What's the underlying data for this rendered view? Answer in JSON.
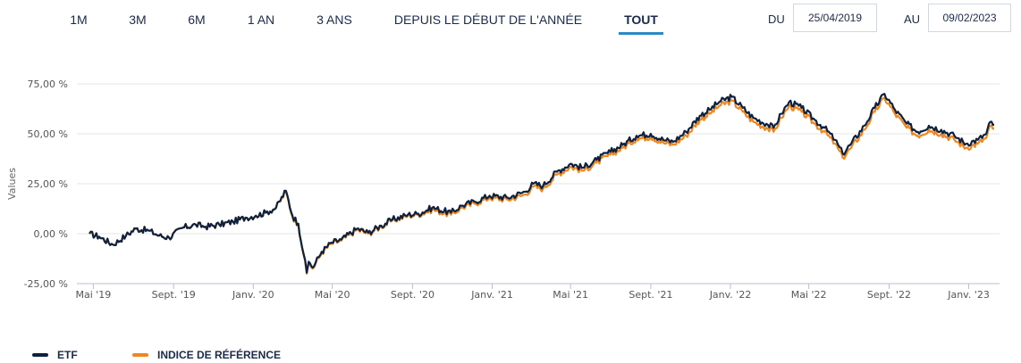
{
  "range_tabs": [
    {
      "label": "1M"
    },
    {
      "label": "3M"
    },
    {
      "label": "6M"
    },
    {
      "label": "1 AN"
    },
    {
      "label": "3 ANS"
    },
    {
      "label": "DEPUIS LE DÉBUT DE L'ANNÉE"
    },
    {
      "label": "TOUT",
      "active": true
    }
  ],
  "date_range": {
    "from_label": "DU",
    "from_value": "25/04/2019",
    "to_label": "AU",
    "to_value": "09/02/2023"
  },
  "colors": {
    "etf": "#0e2240",
    "benchmark": "#f0861e",
    "grid": "#e6e6e6",
    "active_tab": "#2a8ac6"
  },
  "chart_data": {
    "type": "line",
    "ylabel": "Values",
    "ylim": [
      -25,
      75
    ],
    "y_ticks": [
      "-25,00 %",
      "0,00 %",
      "25,00 %",
      "50,00 %",
      "75,00 %"
    ],
    "y_tick_values": [
      -25,
      0,
      25,
      50,
      75
    ],
    "x_ticks": [
      "Mai '19",
      "Sept. '19",
      "Janv. '20",
      "Mai '20",
      "Sept. '20",
      "Janv. '21",
      "Mai '21",
      "Sept. '21",
      "Janv. '22",
      "Mai '22",
      "Sept. '22",
      "Janv. '23"
    ],
    "x_tick_dates": [
      "2019-05-01",
      "2019-09-01",
      "2020-01-01",
      "2020-05-01",
      "2020-09-01",
      "2021-01-01",
      "2021-05-01",
      "2021-09-01",
      "2022-01-01",
      "2022-05-01",
      "2022-09-01",
      "2023-01-01"
    ],
    "x_range": [
      "2019-04-25",
      "2023-02-09"
    ],
    "grid": "horizontal",
    "legend_position": "bottom-left",
    "series": [
      {
        "name": "ETF",
        "points": [
          [
            "2019-04-25",
            0.0
          ],
          [
            "2019-05-10",
            -1.5
          ],
          [
            "2019-05-31",
            -5.5
          ],
          [
            "2019-06-20",
            -1.0
          ],
          [
            "2019-07-05",
            2.5
          ],
          [
            "2019-07-25",
            1.5
          ],
          [
            "2019-08-10",
            -1.0
          ],
          [
            "2019-08-25",
            -2.0
          ],
          [
            "2019-09-15",
            3.0
          ],
          [
            "2019-10-05",
            4.5
          ],
          [
            "2019-10-20",
            3.5
          ],
          [
            "2019-11-10",
            4.5
          ],
          [
            "2019-12-01",
            6.0
          ],
          [
            "2019-12-20",
            8.0
          ],
          [
            "2020-01-05",
            9.0
          ],
          [
            "2020-01-20",
            10.5
          ],
          [
            "2020-02-05",
            13.0
          ],
          [
            "2020-02-20",
            21.5
          ],
          [
            "2020-03-01",
            9.0
          ],
          [
            "2020-03-10",
            5.0
          ],
          [
            "2020-03-18",
            -10.0
          ],
          [
            "2020-03-23",
            -19.5
          ],
          [
            "2020-03-26",
            -14.0
          ],
          [
            "2020-04-01",
            -17.0
          ],
          [
            "2020-04-15",
            -9.0
          ],
          [
            "2020-04-30",
            -4.5
          ],
          [
            "2020-05-15",
            -3.0
          ],
          [
            "2020-06-08",
            2.5
          ],
          [
            "2020-06-25",
            0.5
          ],
          [
            "2020-07-15",
            4.0
          ],
          [
            "2020-08-01",
            7.0
          ],
          [
            "2020-08-25",
            9.5
          ],
          [
            "2020-09-10",
            10.0
          ],
          [
            "2020-10-01",
            13.0
          ],
          [
            "2020-10-30",
            10.5
          ],
          [
            "2020-11-15",
            14.0
          ],
          [
            "2020-12-05",
            16.0
          ],
          [
            "2020-12-28",
            19.0
          ],
          [
            "2021-01-25",
            18.0
          ],
          [
            "2021-02-20",
            21.0
          ],
          [
            "2021-03-05",
            25.0
          ],
          [
            "2021-03-20",
            24.0
          ],
          [
            "2021-04-10",
            31.0
          ],
          [
            "2021-05-01",
            35.0
          ],
          [
            "2021-05-20",
            33.0
          ],
          [
            "2021-06-10",
            37.0
          ],
          [
            "2021-07-01",
            41.0
          ],
          [
            "2021-07-20",
            44.5
          ],
          [
            "2021-08-10",
            49.0
          ],
          [
            "2021-09-01",
            50.0
          ],
          [
            "2021-09-20",
            47.0
          ],
          [
            "2021-10-05",
            46.0
          ],
          [
            "2021-10-25",
            51.0
          ],
          [
            "2021-11-15",
            59.0
          ],
          [
            "2021-11-30",
            62.0
          ],
          [
            "2021-12-15",
            66.0
          ],
          [
            "2022-01-03",
            68.5
          ],
          [
            "2022-01-20",
            63.0
          ],
          [
            "2022-02-05",
            58.0
          ],
          [
            "2022-02-25",
            55.0
          ],
          [
            "2022-03-08",
            53.0
          ],
          [
            "2022-03-20",
            60.0
          ],
          [
            "2022-04-01",
            66.0
          ],
          [
            "2022-04-20",
            63.0
          ],
          [
            "2022-05-10",
            57.0
          ],
          [
            "2022-05-25",
            53.0
          ],
          [
            "2022-06-10",
            47.0
          ],
          [
            "2022-06-22",
            40.0
          ],
          [
            "2022-07-05",
            45.0
          ],
          [
            "2022-07-25",
            54.0
          ],
          [
            "2022-08-10",
            63.0
          ],
          [
            "2022-08-25",
            70.0
          ],
          [
            "2022-09-10",
            62.0
          ],
          [
            "2022-09-28",
            55.0
          ],
          [
            "2022-10-15",
            51.0
          ],
          [
            "2022-11-01",
            54.0
          ],
          [
            "2022-11-20",
            52.0
          ],
          [
            "2022-12-10",
            49.0
          ],
          [
            "2022-12-28",
            45.0
          ],
          [
            "2023-01-15",
            47.0
          ],
          [
            "2023-01-28",
            50.0
          ],
          [
            "2023-02-03",
            56.0
          ],
          [
            "2023-02-09",
            54.5
          ]
        ]
      },
      {
        "name": "INDICE DE RÉFÉRENCE",
        "points": [
          [
            "2019-04-25",
            0.0
          ],
          [
            "2019-05-10",
            -1.5
          ],
          [
            "2019-05-31",
            -5.5
          ],
          [
            "2019-06-20",
            -1.0
          ],
          [
            "2019-07-05",
            2.5
          ],
          [
            "2019-07-25",
            1.5
          ],
          [
            "2019-08-10",
            -1.0
          ],
          [
            "2019-08-25",
            -2.0
          ],
          [
            "2019-09-15",
            3.0
          ],
          [
            "2019-10-05",
            4.5
          ],
          [
            "2019-10-20",
            3.5
          ],
          [
            "2019-11-10",
            4.5
          ],
          [
            "2019-12-01",
            6.0
          ],
          [
            "2019-12-20",
            8.0
          ],
          [
            "2020-01-05",
            9.0
          ],
          [
            "2020-01-20",
            10.5
          ],
          [
            "2020-02-05",
            13.0
          ],
          [
            "2020-02-20",
            21.0
          ],
          [
            "2020-03-01",
            8.5
          ],
          [
            "2020-03-10",
            4.5
          ],
          [
            "2020-03-18",
            -10.5
          ],
          [
            "2020-03-23",
            -20.0
          ],
          [
            "2020-03-26",
            -14.5
          ],
          [
            "2020-04-01",
            -17.5
          ],
          [
            "2020-04-15",
            -9.5
          ],
          [
            "2020-04-30",
            -5.0
          ],
          [
            "2020-05-15",
            -3.5
          ],
          [
            "2020-06-08",
            2.0
          ],
          [
            "2020-06-25",
            0.0
          ],
          [
            "2020-07-15",
            3.5
          ],
          [
            "2020-08-01",
            6.5
          ],
          [
            "2020-08-25",
            9.0
          ],
          [
            "2020-09-10",
            9.5
          ],
          [
            "2020-10-01",
            12.0
          ],
          [
            "2020-10-30",
            9.5
          ],
          [
            "2020-11-15",
            13.0
          ],
          [
            "2020-12-05",
            15.0
          ],
          [
            "2020-12-28",
            18.0
          ],
          [
            "2021-01-25",
            17.0
          ],
          [
            "2021-02-20",
            19.5
          ],
          [
            "2021-03-05",
            23.5
          ],
          [
            "2021-03-20",
            22.5
          ],
          [
            "2021-04-10",
            29.5
          ],
          [
            "2021-05-01",
            33.5
          ],
          [
            "2021-05-20",
            31.5
          ],
          [
            "2021-06-10",
            35.5
          ],
          [
            "2021-07-01",
            39.5
          ],
          [
            "2021-07-20",
            43.0
          ],
          [
            "2021-08-10",
            47.5
          ],
          [
            "2021-09-01",
            48.5
          ],
          [
            "2021-09-20",
            45.5
          ],
          [
            "2021-10-05",
            44.5
          ],
          [
            "2021-10-25",
            49.0
          ],
          [
            "2021-11-15",
            57.0
          ],
          [
            "2021-11-30",
            60.0
          ],
          [
            "2021-12-15",
            64.0
          ],
          [
            "2022-01-03",
            66.5
          ],
          [
            "2022-01-20",
            61.0
          ],
          [
            "2022-02-05",
            56.0
          ],
          [
            "2022-02-25",
            53.0
          ],
          [
            "2022-03-08",
            51.0
          ],
          [
            "2022-03-20",
            58.0
          ],
          [
            "2022-04-01",
            64.0
          ],
          [
            "2022-04-20",
            61.0
          ],
          [
            "2022-05-10",
            55.0
          ],
          [
            "2022-05-25",
            51.0
          ],
          [
            "2022-06-10",
            45.0
          ],
          [
            "2022-06-22",
            38.0
          ],
          [
            "2022-07-05",
            43.0
          ],
          [
            "2022-07-25",
            52.0
          ],
          [
            "2022-08-10",
            61.0
          ],
          [
            "2022-08-25",
            68.0
          ],
          [
            "2022-09-10",
            60.0
          ],
          [
            "2022-09-28",
            53.0
          ],
          [
            "2022-10-15",
            49.0
          ],
          [
            "2022-11-01",
            52.0
          ],
          [
            "2022-11-20",
            50.0
          ],
          [
            "2022-12-10",
            47.0
          ],
          [
            "2022-12-28",
            43.0
          ],
          [
            "2023-01-15",
            45.0
          ],
          [
            "2023-01-28",
            48.0
          ],
          [
            "2023-02-03",
            54.0
          ],
          [
            "2023-02-09",
            52.5
          ]
        ]
      }
    ]
  }
}
